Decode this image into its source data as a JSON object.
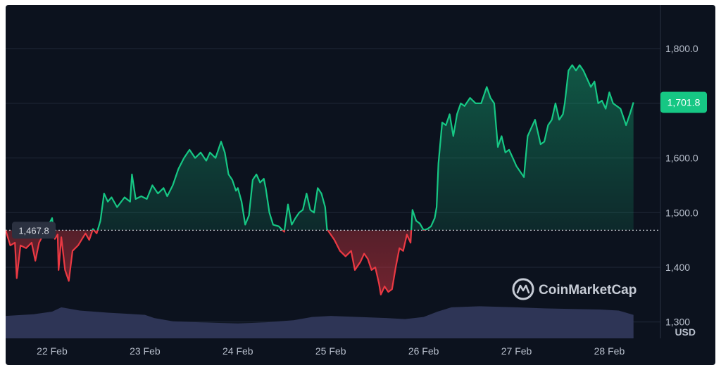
{
  "chart_data": {
    "type": "area",
    "source": "CoinMarketCap",
    "currency_label": "USD",
    "baseline": 1467.8,
    "baseline_label": "1,467.8",
    "current_price": 1701.8,
    "current_label": "1,701.8",
    "ylim": [
      1270,
      1880
    ],
    "y_ticks": [
      {
        "value": 1300,
        "label": "1,300"
      },
      {
        "value": 1400,
        "label": "1,400"
      },
      {
        "value": 1500,
        "label": "1,500.0"
      },
      {
        "value": 1600,
        "label": "1,600.0"
      },
      {
        "value": 1800,
        "label": "1,800.0"
      }
    ],
    "x_range": [
      21.5,
      28.55
    ],
    "x_ticks": [
      {
        "value": 22,
        "label": "22 Feb"
      },
      {
        "value": 23,
        "label": "23 Feb"
      },
      {
        "value": 24,
        "label": "24 Feb"
      },
      {
        "value": 25,
        "label": "25 Feb"
      },
      {
        "value": 26,
        "label": "26 Feb"
      },
      {
        "value": 27,
        "label": "27 Feb"
      },
      {
        "value": 28,
        "label": "28 Feb"
      }
    ],
    "colors": {
      "up": "#16c784",
      "down": "#ea3943",
      "volume": "#2e3556"
    },
    "price": [
      [
        21.5,
        1467.8
      ],
      [
        21.55,
        1440
      ],
      [
        21.6,
        1445
      ],
      [
        21.62,
        1380
      ],
      [
        21.66,
        1440
      ],
      [
        21.72,
        1435
      ],
      [
        21.78,
        1445
      ],
      [
        21.82,
        1412
      ],
      [
        21.86,
        1445
      ],
      [
        21.9,
        1458
      ],
      [
        21.94,
        1470
      ],
      [
        22.0,
        1490
      ],
      [
        22.03,
        1452
      ],
      [
        22.06,
        1460
      ],
      [
        22.07,
        1395
      ],
      [
        22.1,
        1455
      ],
      [
        22.14,
        1395
      ],
      [
        22.18,
        1375
      ],
      [
        22.22,
        1430
      ],
      [
        22.28,
        1440
      ],
      [
        22.36,
        1462
      ],
      [
        22.4,
        1450
      ],
      [
        22.44,
        1470
      ],
      [
        22.48,
        1462
      ],
      [
        22.52,
        1485
      ],
      [
        22.56,
        1535
      ],
      [
        22.6,
        1520
      ],
      [
        22.64,
        1528
      ],
      [
        22.7,
        1510
      ],
      [
        22.78,
        1528
      ],
      [
        22.84,
        1520
      ],
      [
        22.86,
        1570
      ],
      [
        22.9,
        1525
      ],
      [
        22.96,
        1530
      ],
      [
        23.02,
        1525
      ],
      [
        23.08,
        1550
      ],
      [
        23.14,
        1535
      ],
      [
        23.2,
        1545
      ],
      [
        23.24,
        1530
      ],
      [
        23.3,
        1550
      ],
      [
        23.36,
        1580
      ],
      [
        23.42,
        1600
      ],
      [
        23.48,
        1615
      ],
      [
        23.54,
        1600
      ],
      [
        23.6,
        1610
      ],
      [
        23.66,
        1595
      ],
      [
        23.7,
        1610
      ],
      [
        23.76,
        1600
      ],
      [
        23.8,
        1620
      ],
      [
        23.82,
        1630
      ],
      [
        23.86,
        1610
      ],
      [
        23.9,
        1570
      ],
      [
        23.94,
        1560
      ],
      [
        23.98,
        1540
      ],
      [
        24.0,
        1545
      ],
      [
        24.04,
        1520
      ],
      [
        24.08,
        1478
      ],
      [
        24.12,
        1495
      ],
      [
        24.16,
        1560
      ],
      [
        24.2,
        1570
      ],
      [
        24.24,
        1555
      ],
      [
        24.28,
        1562
      ],
      [
        24.3,
        1545
      ],
      [
        24.34,
        1500
      ],
      [
        24.38,
        1478
      ],
      [
        24.44,
        1475
      ],
      [
        24.48,
        1468
      ],
      [
        24.5,
        1465
      ],
      [
        24.54,
        1515
      ],
      [
        24.58,
        1478
      ],
      [
        24.62,
        1490
      ],
      [
        24.66,
        1500
      ],
      [
        24.7,
        1505
      ],
      [
        24.74,
        1535
      ],
      [
        24.78,
        1505
      ],
      [
        24.82,
        1500
      ],
      [
        24.86,
        1545
      ],
      [
        24.9,
        1535
      ],
      [
        24.94,
        1510
      ],
      [
        24.96,
        1470
      ],
      [
        25.0,
        1460
      ],
      [
        25.04,
        1450
      ],
      [
        25.1,
        1430
      ],
      [
        25.16,
        1420
      ],
      [
        25.22,
        1430
      ],
      [
        25.26,
        1395
      ],
      [
        25.32,
        1410
      ],
      [
        25.36,
        1425
      ],
      [
        25.4,
        1415
      ],
      [
        25.44,
        1395
      ],
      [
        25.48,
        1400
      ],
      [
        25.52,
        1370
      ],
      [
        25.54,
        1350
      ],
      [
        25.58,
        1365
      ],
      [
        25.62,
        1355
      ],
      [
        25.66,
        1360
      ],
      [
        25.7,
        1400
      ],
      [
        25.74,
        1435
      ],
      [
        25.78,
        1430
      ],
      [
        25.82,
        1460
      ],
      [
        25.86,
        1445
      ],
      [
        25.88,
        1505
      ],
      [
        25.92,
        1485
      ],
      [
        25.96,
        1480
      ],
      [
        26.0,
        1468
      ],
      [
        26.04,
        1470
      ],
      [
        26.08,
        1475
      ],
      [
        26.12,
        1490
      ],
      [
        26.14,
        1510
      ],
      [
        26.16,
        1590
      ],
      [
        26.2,
        1665
      ],
      [
        26.24,
        1660
      ],
      [
        26.28,
        1680
      ],
      [
        26.32,
        1640
      ],
      [
        26.36,
        1680
      ],
      [
        26.4,
        1700
      ],
      [
        26.44,
        1695
      ],
      [
        26.5,
        1710
      ],
      [
        26.56,
        1700
      ],
      [
        26.62,
        1700
      ],
      [
        26.68,
        1730
      ],
      [
        26.72,
        1710
      ],
      [
        26.76,
        1700
      ],
      [
        26.8,
        1620
      ],
      [
        26.84,
        1640
      ],
      [
        26.88,
        1610
      ],
      [
        26.92,
        1615
      ],
      [
        26.96,
        1600
      ],
      [
        27.0,
        1585
      ],
      [
        27.04,
        1575
      ],
      [
        27.08,
        1565
      ],
      [
        27.12,
        1640
      ],
      [
        27.16,
        1655
      ],
      [
        27.2,
        1670
      ],
      [
        27.26,
        1625
      ],
      [
        27.3,
        1630
      ],
      [
        27.34,
        1660
      ],
      [
        27.38,
        1670
      ],
      [
        27.42,
        1700
      ],
      [
        27.46,
        1670
      ],
      [
        27.5,
        1680
      ],
      [
        27.52,
        1700
      ],
      [
        27.56,
        1760
      ],
      [
        27.6,
        1770
      ],
      [
        27.64,
        1760
      ],
      [
        27.68,
        1770
      ],
      [
        27.72,
        1760
      ],
      [
        27.76,
        1745
      ],
      [
        27.8,
        1730
      ],
      [
        27.84,
        1740
      ],
      [
        27.88,
        1700
      ],
      [
        27.92,
        1705
      ],
      [
        27.96,
        1690
      ],
      [
        28.0,
        1720
      ],
      [
        28.04,
        1700
      ],
      [
        28.08,
        1695
      ],
      [
        28.12,
        1690
      ],
      [
        28.16,
        1670
      ],
      [
        28.18,
        1660
      ],
      [
        28.22,
        1680
      ],
      [
        28.26,
        1701.8
      ]
    ],
    "volume_relative": [
      [
        21.5,
        0.42
      ],
      [
        21.8,
        0.45
      ],
      [
        22.0,
        0.5
      ],
      [
        22.1,
        0.58
      ],
      [
        22.3,
        0.52
      ],
      [
        22.6,
        0.48
      ],
      [
        22.8,
        0.46
      ],
      [
        23.0,
        0.44
      ],
      [
        23.1,
        0.38
      ],
      [
        23.3,
        0.32
      ],
      [
        23.6,
        0.3
      ],
      [
        24.0,
        0.28
      ],
      [
        24.3,
        0.3
      ],
      [
        24.6,
        0.34
      ],
      [
        24.8,
        0.4
      ],
      [
        25.0,
        0.42
      ],
      [
        25.3,
        0.4
      ],
      [
        25.6,
        0.38
      ],
      [
        25.8,
        0.36
      ],
      [
        26.0,
        0.4
      ],
      [
        26.15,
        0.5
      ],
      [
        26.3,
        0.58
      ],
      [
        26.6,
        0.6
      ],
      [
        27.0,
        0.58
      ],
      [
        27.3,
        0.56
      ],
      [
        27.6,
        0.55
      ],
      [
        27.9,
        0.54
      ],
      [
        28.1,
        0.52
      ],
      [
        28.26,
        0.44
      ]
    ]
  }
}
